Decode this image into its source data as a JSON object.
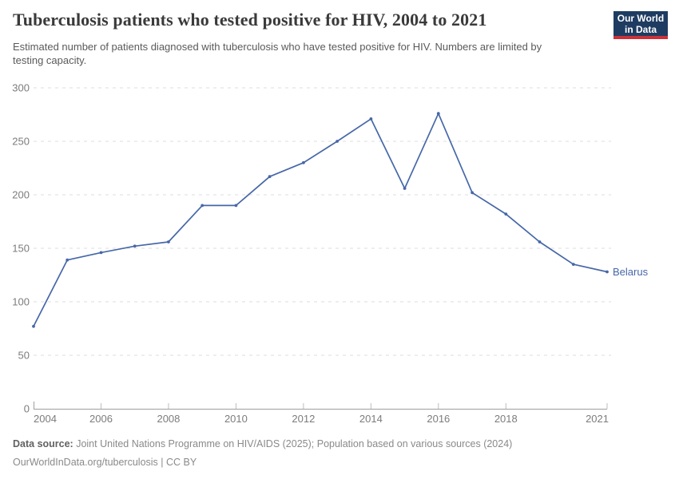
{
  "logo": {
    "line1": "Our World",
    "line2": "in Data",
    "bg_color": "#1e3c61",
    "stripe_color": "#cd3038"
  },
  "chart_data": {
    "type": "line",
    "title": "Tuberculosis patients who tested positive for HIV, 2004 to 2021",
    "subtitle": "Estimated number of patients diagnosed with tuberculosis who have tested positive for HIV. Numbers are limited by testing capacity.",
    "x": [
      2004,
      2005,
      2006,
      2007,
      2008,
      2009,
      2010,
      2011,
      2012,
      2013,
      2014,
      2015,
      2016,
      2017,
      2018,
      2019,
      2020,
      2021
    ],
    "series": [
      {
        "name": "Belarus",
        "color": "#4667a8",
        "values": [
          77,
          139,
          146,
          152,
          156,
          190,
          190,
          217,
          230,
          250,
          271,
          206,
          276,
          202,
          182,
          156,
          135,
          128
        ]
      }
    ],
    "xlabel": "",
    "ylabel": "",
    "ylim": [
      0,
      300
    ],
    "yticks": [
      0,
      50,
      100,
      150,
      200,
      250,
      300
    ],
    "xticks": [
      2004,
      2006,
      2008,
      2010,
      2012,
      2014,
      2016,
      2018,
      2021
    ],
    "grid": true,
    "grid_style": "dashed",
    "legend_position": "end-of-line"
  },
  "footer": {
    "source_label": "Data source:",
    "source_text": " Joint United Nations Programme on HIV/AIDS (2025); Population based on various sources (2024)",
    "credit": "OurWorldInData.org/tuberculosis | CC BY"
  }
}
